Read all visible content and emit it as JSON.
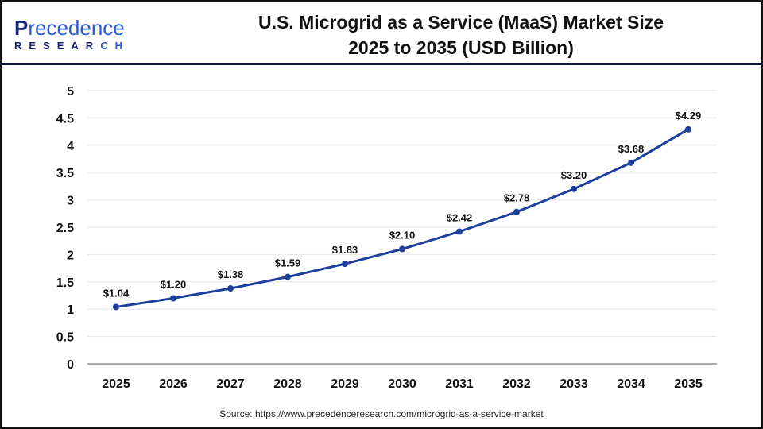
{
  "logo": {
    "text_top_first": "P",
    "text_top_rest": "recedence",
    "text_bottom_main": "RESEAR",
    "text_bottom_accent": "CH"
  },
  "header": {
    "title_line1": "U.S. Microgrid as a Service (MaaS) Market Size",
    "title_line2": "2025 to 2035 (USD Billion)"
  },
  "source": "Source: https://www.precedenceresearch.com/microgrid-as-a-service-market",
  "colors": {
    "line": "#1c3f9e",
    "grid": "#e6e6e6",
    "axis": "#aaaaaa",
    "header_rule": "#0d1440"
  },
  "chart_data": {
    "type": "line",
    "title": "U.S. Microgrid as a Service (MaaS) Market Size 2025 to 2035 (USD Billion)",
    "categories": [
      "2025",
      "2026",
      "2027",
      "2028",
      "2029",
      "2030",
      "2031",
      "2032",
      "2033",
      "2034",
      "2035"
    ],
    "values": [
      1.04,
      1.2,
      1.38,
      1.59,
      1.83,
      2.1,
      2.42,
      2.78,
      3.2,
      3.68,
      4.29
    ],
    "data_labels": [
      "$1.04",
      "$1.20",
      "$1.38",
      "$1.59",
      "$1.83",
      "$2.10",
      "$2.42",
      "$2.78",
      "$3.20",
      "$3.68",
      "$4.29"
    ],
    "yticks": [
      "0",
      "0.5",
      "1",
      "1.5",
      "2",
      "2.5",
      "3",
      "3.5",
      "4",
      "4.5",
      "5"
    ],
    "ylim": [
      0,
      5
    ],
    "xlabel": "",
    "ylabel": "",
    "grid": true,
    "legend": "none"
  }
}
